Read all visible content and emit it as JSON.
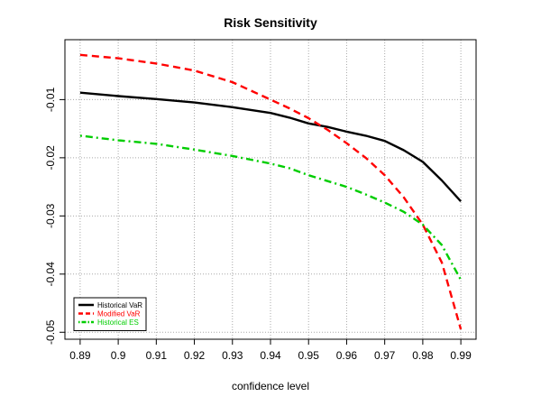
{
  "chart_data": {
    "type": "line",
    "title": "Risk Sensitivity",
    "xlabel": "confidence level",
    "ylabel": "",
    "xlim": [
      0.89,
      0.99
    ],
    "ylim": [
      -0.05,
      0.0
    ],
    "x_ticks": [
      0.89,
      0.9,
      0.91,
      0.92,
      0.93,
      0.94,
      0.95,
      0.96,
      0.97,
      0.98,
      0.99
    ],
    "x_tick_labels": [
      "0.89",
      "0.9",
      "0.91",
      "0.92",
      "0.93",
      "0.94",
      "0.95",
      "0.96",
      "0.97",
      "0.98",
      "0.99"
    ],
    "y_ticks": [
      -0.05,
      -0.04,
      -0.03,
      -0.02,
      -0.01
    ],
    "y_tick_labels": [
      "-0.05",
      "-0.04",
      "-0.03",
      "-0.02",
      "-0.01"
    ],
    "grid": true,
    "legend_position": "bottom-left",
    "x": [
      0.89,
      0.9,
      0.91,
      0.92,
      0.93,
      0.94,
      0.945,
      0.95,
      0.955,
      0.96,
      0.965,
      0.97,
      0.975,
      0.98,
      0.985,
      0.99
    ],
    "series": [
      {
        "name": "Historical VaR",
        "color": "#000000",
        "dash": "solid",
        "values": [
          -0.0088,
          -0.0094,
          -0.0099,
          -0.0105,
          -0.0113,
          -0.0123,
          -0.0131,
          -0.0141,
          -0.0147,
          -0.0155,
          -0.0162,
          -0.0171,
          -0.0187,
          -0.0207,
          -0.0239,
          -0.0275
        ]
      },
      {
        "name": "Modified VaR",
        "color": "#ff0000",
        "dash": "dashed",
        "values": [
          -0.0023,
          -0.0029,
          -0.0038,
          -0.005,
          -0.007,
          -0.01,
          -0.0115,
          -0.0132,
          -0.0152,
          -0.0175,
          -0.02,
          -0.023,
          -0.0268,
          -0.0315,
          -0.038,
          -0.0495
        ]
      },
      {
        "name": "Historical ES",
        "color": "#00cd00",
        "dash": "dotdash",
        "values": [
          -0.0162,
          -0.017,
          -0.0176,
          -0.0186,
          -0.0197,
          -0.021,
          -0.0218,
          -0.023,
          -0.024,
          -0.025,
          -0.0263,
          -0.0277,
          -0.0293,
          -0.0315,
          -0.035,
          -0.041
        ]
      }
    ]
  }
}
